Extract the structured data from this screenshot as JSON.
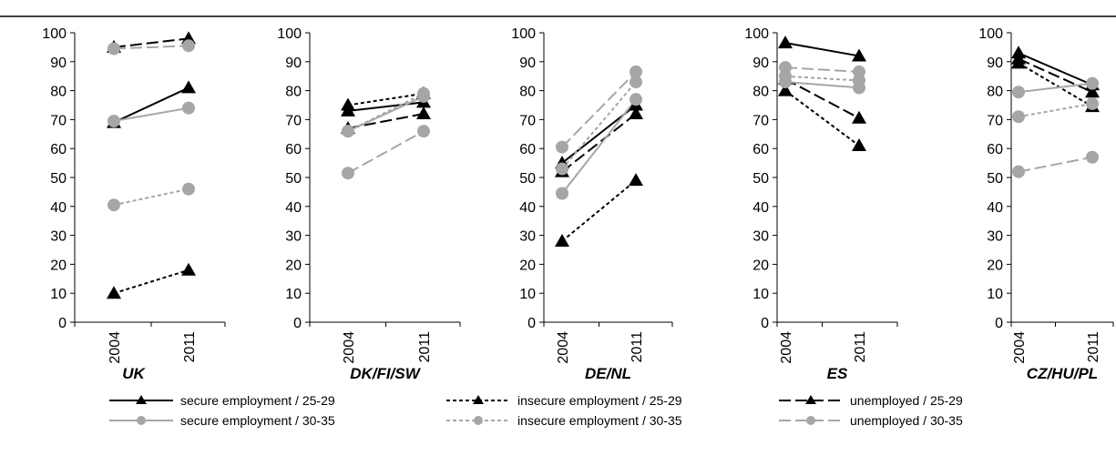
{
  "chart_data": {
    "type": "line",
    "categories": [
      "2004",
      "2011"
    ],
    "ylim": [
      0,
      100
    ],
    "yticks": [
      0,
      10,
      20,
      30,
      40,
      50,
      60,
      70,
      80,
      90,
      100
    ],
    "series": [
      {
        "name": "secure employment / 25-29",
        "color": "#000000",
        "dash": "solid",
        "marker": "triangle"
      },
      {
        "name": "insecure employment / 25-29",
        "color": "#000000",
        "dash": "short",
        "marker": "triangle"
      },
      {
        "name": "unemployed / 25-29",
        "color": "#000000",
        "dash": "long",
        "marker": "triangle"
      },
      {
        "name": "secure employment / 30-35",
        "color": "#a6a6a6",
        "dash": "solid",
        "marker": "circle"
      },
      {
        "name": "insecure employment / 30-35",
        "color": "#a6a6a6",
        "dash": "short",
        "marker": "circle"
      },
      {
        "name": "unemployed / 30-35",
        "color": "#a6a6a6",
        "dash": "long",
        "marker": "circle"
      }
    ],
    "panels": [
      {
        "title": "UK",
        "values": [
          [
            69,
            81
          ],
          [
            10,
            18
          ],
          [
            95,
            98
          ],
          [
            69.5,
            74
          ],
          [
            40.5,
            46
          ],
          [
            94.5,
            95.5
          ]
        ]
      },
      {
        "title": "DK/FI/SW",
        "values": [
          [
            73,
            76
          ],
          [
            75,
            79
          ],
          [
            67,
            72
          ],
          [
            66,
            78
          ],
          [
            66,
            79
          ],
          [
            51.5,
            66
          ]
        ]
      },
      {
        "title": "DE/NL",
        "values": [
          [
            55,
            75
          ],
          [
            28,
            49
          ],
          [
            52,
            72
          ],
          [
            44.5,
            77
          ],
          [
            53,
            83
          ],
          [
            60.5,
            86.5
          ]
        ]
      },
      {
        "title": "ES",
        "values": [
          [
            96.5,
            92
          ],
          [
            80,
            61
          ],
          [
            84,
            70.5
          ],
          [
            83,
            81
          ],
          [
            85,
            83.5
          ],
          [
            88,
            86.5
          ]
        ]
      },
      {
        "title": "CZ/HU/PL",
        "values": [
          [
            93,
            82
          ],
          [
            89.5,
            74.5
          ],
          [
            91,
            79.5
          ],
          [
            79.5,
            82.5
          ],
          [
            71,
            75.5
          ],
          [
            52,
            57
          ]
        ]
      }
    ]
  }
}
